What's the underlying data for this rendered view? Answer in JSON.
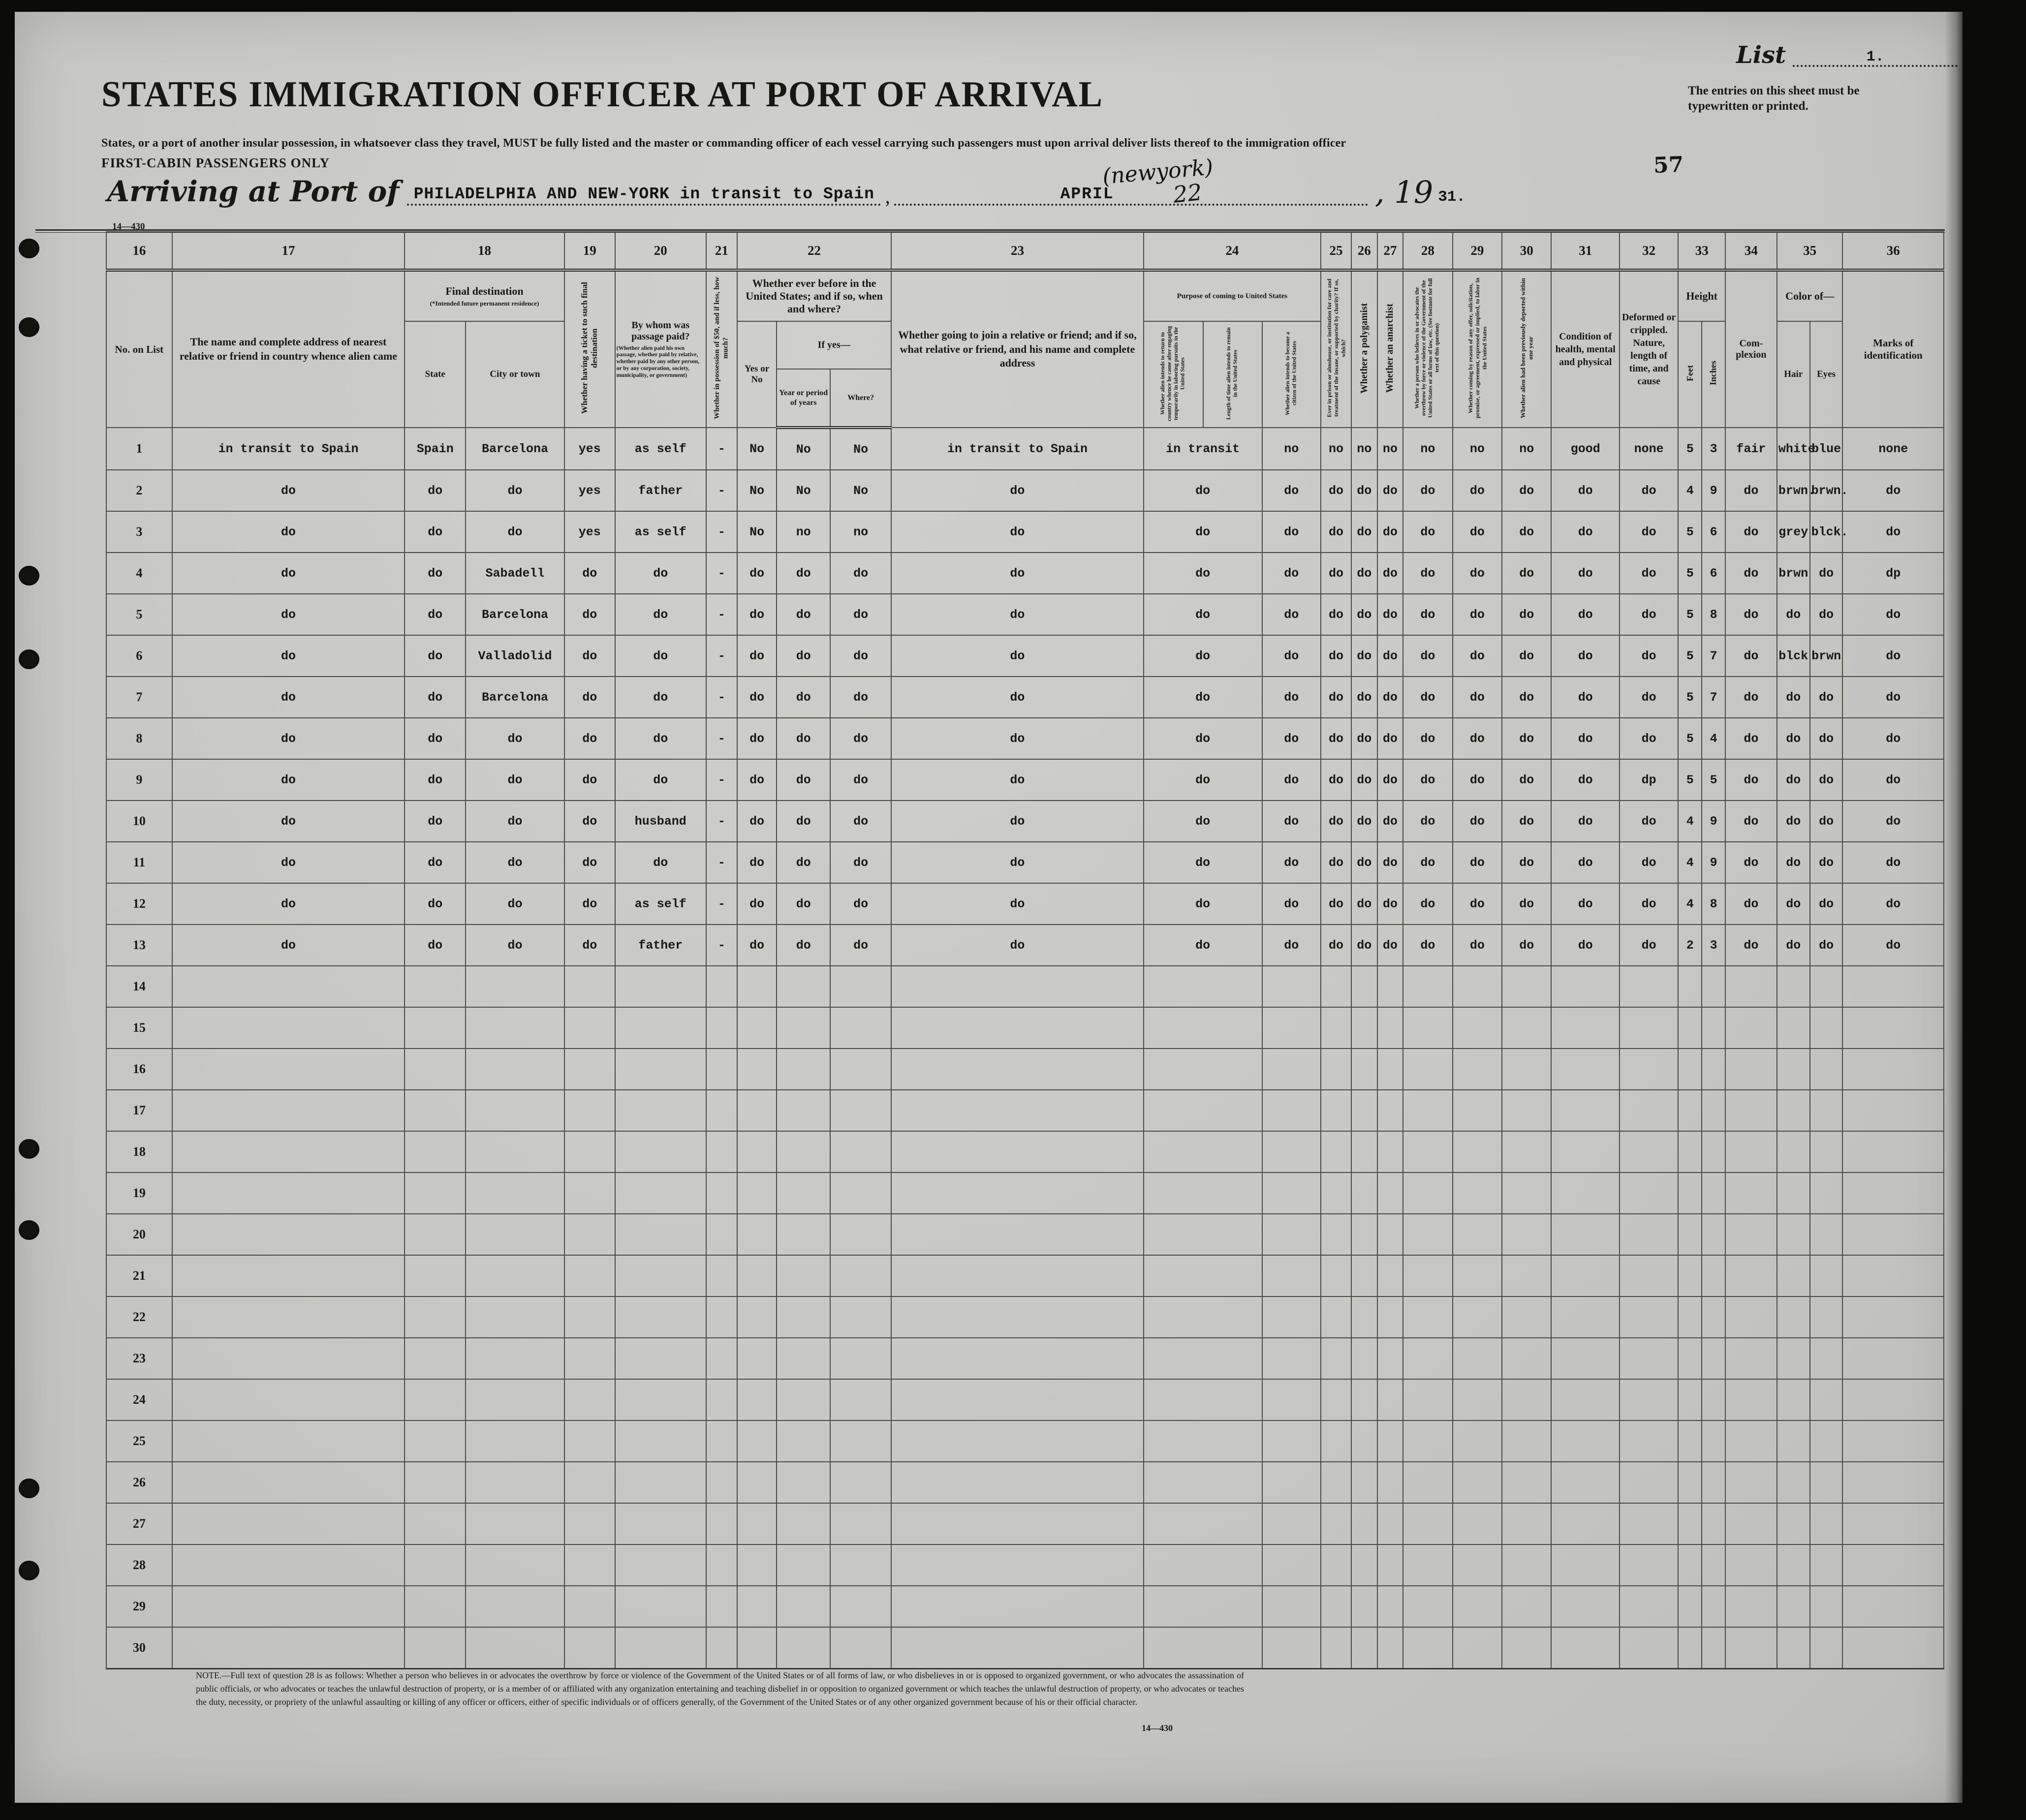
{
  "page": {
    "list_label": "List",
    "list_number": "1.",
    "entries_note": "The entries on this sheet must be typewritten or printed.",
    "sheet_number": "57",
    "title": "STATES IMMIGRATION OFFICER AT PORT OF ARRIVAL",
    "subtitle": "States, or a port of another insular possession, in whatsoever class they travel, MUST be fully listed and the master or commanding officer of each vessel carrying such passengers must upon arrival deliver lists thereof to the immigration officer",
    "subtitle2": "FIRST-CABIN PASSENGERS ONLY",
    "arrival_label": "Arriving at Port of",
    "port_value": "PHILADELPHIA AND NEW-YORK in transit to Spain",
    "comma": ",",
    "handwritten_note": "(newyork)",
    "date_month": "APRIL",
    "date_day": "22",
    "year_printed": ", 19",
    "year_typed": "31.",
    "form_number": "14—430",
    "footnote": "NOTE.—Full text of question 28 is as follows: Whether a person who believes in or advocates the overthrow by force or violence of the Government of the United States or of all forms of law, or who disbelieves in or is opposed to organized government, or who advocates the assassination of public officials, or who advocates or teaches the unlawful destruction of property, or is a member of or affiliated with any organization entertaining and teaching disbelief in or opposition to organized government or which teaches the unlawful destruction of property, or who advocates or teaches the duty, necessity, or propriety of the unlawful assaulting or killing of any officer or officers, either of specific individuals or of officers generally, of the Government of the United States or of any other organized government because of his or their official character.",
    "footnote_form_number": "14—430"
  },
  "table": {
    "col_numbers": [
      "16",
      "17",
      "18",
      "19",
      "20",
      "21",
      "22",
      "23",
      "24",
      "25",
      "26",
      "27",
      "28",
      "29",
      "30",
      "31",
      "32",
      "33",
      "34",
      "35",
      "36"
    ],
    "headers": {
      "h16": "No. on List",
      "h17": "The name and complete address of nearest relative or friend in country whence alien came",
      "h18": {
        "group": "Final destination",
        "note": "(*Intended future permanent residence)",
        "state": "State",
        "city": "City or town"
      },
      "h19": "Whether having a ticket to such final destination",
      "h20": {
        "main": "By whom was passage paid?",
        "note": "(Whether alien paid his own passage, whether paid by relative, whether paid by any other person, or by any corporation, society, municipality, or government)"
      },
      "h21": "Whether in possession of $50, and if less, how much?",
      "h22": {
        "group": "Whether ever before in the United States; and if so, when and where?",
        "yes_no": "Yes or No",
        "if_yes": "If yes—",
        "year": "Year or period of years",
        "where": "Where?"
      },
      "h23": "Whether going to join a relative or friend; and if so, what relative or friend, and his name and complete address",
      "h24": {
        "group": "Purpose of coming to United States",
        "return_home": "Whether alien intends to return to country whence he came after engaging temporarily in laboring pursuits in the United States",
        "length_stay": "Length of time alien intends to remain in the United States",
        "become_citizen": "Whether alien intends to become a citizen of the United States"
      },
      "h25": "Ever in prison or almshouse, or institution for care and treatment of the insane, or supported by charity? If so, which?",
      "h26": "Whether a polygamist",
      "h27": "Whether an anarchist",
      "h28": "Whether a person who believes in or advocates the overthrow by force or violence of the Government of the United States or all forms of law, etc. (See footnote for full text of this question)",
      "h29": "Whether coming by reason of any offer, solicitation, promise, or agreement, expressed or implied, to labor in the United States",
      "h30": "Whether alien had been previously deported within one year",
      "h31": "Condition of health, mental and physical",
      "h32": "Deformed or crippled. Nature, length of time, and cause",
      "h33": {
        "group": "Height",
        "feet": "Feet",
        "inches": "Inches"
      },
      "h34": "Com-plexion",
      "h35": {
        "group": "Color of—",
        "hair": "Hair",
        "eyes": "Eyes"
      },
      "h36": "Marks of identification"
    },
    "columns": [
      "no-on-list",
      "relative-address",
      "dest-state",
      "dest-city",
      "ticket-to-destination",
      "passage-paid-by",
      "possession-of-50",
      "before-us-yes-no",
      "before-us-year",
      "before-us-where",
      "joining-relative",
      "purpose-of-coming",
      "intends-citizen",
      "ever-prison",
      "polygamist",
      "anarchist",
      "overthrow-belief",
      "labor-offer",
      "previously-deported",
      "health-condition",
      "deformed-crippled",
      "height-feet",
      "height-inches",
      "complexion",
      "hair-color",
      "eye-color",
      "marks-identification"
    ],
    "rows": [
      [
        "1",
        "in transit to Spain",
        "Spain",
        "Barcelona",
        "yes",
        "as self",
        "-",
        "No",
        "No",
        "No",
        "in transit to Spain",
        "in transit",
        "no",
        "no",
        "no",
        "no",
        "no",
        "no",
        "no",
        "good",
        "none",
        "5",
        "3",
        "fair",
        "white",
        "blue",
        "none"
      ],
      [
        "2",
        "do",
        "do",
        "do",
        "yes",
        "father",
        "-",
        "No",
        "No",
        "No",
        "do",
        "do",
        "do",
        "do",
        "do",
        "do",
        "do",
        "do",
        "do",
        "do",
        "do",
        "4",
        "9",
        "do",
        "brwn.",
        "brwn.",
        "do"
      ],
      [
        "3",
        "do",
        "do",
        "do",
        "yes",
        "as self",
        "-",
        "No",
        "no",
        "no",
        "do",
        "do",
        "do",
        "do",
        "do",
        "do",
        "do",
        "do",
        "do",
        "do",
        "do",
        "5",
        "6",
        "do",
        "grey",
        "blck.",
        "do"
      ],
      [
        "4",
        "do",
        "do",
        "Sabadell",
        "do",
        "do",
        "-",
        "do",
        "do",
        "do",
        "do",
        "do",
        "do",
        "do",
        "do",
        "do",
        "do",
        "do",
        "do",
        "do",
        "do",
        "5",
        "6",
        "do",
        "brwn",
        "do",
        "dp"
      ],
      [
        "5",
        "do",
        "do",
        "Barcelona",
        "do",
        "do",
        "-",
        "do",
        "do",
        "do",
        "do",
        "do",
        "do",
        "do",
        "do",
        "do",
        "do",
        "do",
        "do",
        "do",
        "do",
        "5",
        "8",
        "do",
        "do",
        "do",
        "do"
      ],
      [
        "6",
        "do",
        "do",
        "Valladolid",
        "do",
        "do",
        "-",
        "do",
        "do",
        "do",
        "do",
        "do",
        "do",
        "do",
        "do",
        "do",
        "do",
        "do",
        "do",
        "do",
        "do",
        "5",
        "7",
        "do",
        "blck",
        "brwn",
        "do"
      ],
      [
        "7",
        "do",
        "do",
        "Barcelona",
        "do",
        "do",
        "-",
        "do",
        "do",
        "do",
        "do",
        "do",
        "do",
        "do",
        "do",
        "do",
        "do",
        "do",
        "do",
        "do",
        "do",
        "5",
        "7",
        "do",
        "do",
        "do",
        "do"
      ],
      [
        "8",
        "do",
        "do",
        "do",
        "do",
        "do",
        "-",
        "do",
        "do",
        "do",
        "do",
        "do",
        "do",
        "do",
        "do",
        "do",
        "do",
        "do",
        "do",
        "do",
        "do",
        "5",
        "4",
        "do",
        "do",
        "do",
        "do"
      ],
      [
        "9",
        "do",
        "do",
        "do",
        "do",
        "do",
        "-",
        "do",
        "do",
        "do",
        "do",
        "do",
        "do",
        "do",
        "do",
        "do",
        "do",
        "do",
        "do",
        "do",
        "dp",
        "5",
        "5",
        "do",
        "do",
        "do",
        "do"
      ],
      [
        "10",
        "do",
        "do",
        "do",
        "do",
        "husband",
        "-",
        "do",
        "do",
        "do",
        "do",
        "do",
        "do",
        "do",
        "do",
        "do",
        "do",
        "do",
        "do",
        "do",
        "do",
        "4",
        "9",
        "do",
        "do",
        "do",
        "do"
      ],
      [
        "11",
        "do",
        "do",
        "do",
        "do",
        "do",
        "-",
        "do",
        "do",
        "do",
        "do",
        "do",
        "do",
        "do",
        "do",
        "do",
        "do",
        "do",
        "do",
        "do",
        "do",
        "4",
        "9",
        "do",
        "do",
        "do",
        "do"
      ],
      [
        "12",
        "do",
        "do",
        "do",
        "do",
        "as self",
        "-",
        "do",
        "do",
        "do",
        "do",
        "do",
        "do",
        "do",
        "do",
        "do",
        "do",
        "do",
        "do",
        "do",
        "do",
        "4",
        "8",
        "do",
        "do",
        "do",
        "do"
      ],
      [
        "13",
        "do",
        "do",
        "do",
        "do",
        "father",
        "-",
        "do",
        "do",
        "do",
        "do",
        "do",
        "do",
        "do",
        "do",
        "do",
        "do",
        "do",
        "do",
        "do",
        "do",
        "2",
        "3",
        "do",
        "do",
        "do",
        "do"
      ],
      [
        "14",
        "",
        "",
        "",
        "",
        "",
        "",
        "",
        "",
        "",
        "",
        "",
        "",
        "",
        "",
        "",
        "",
        "",
        "",
        "",
        "",
        "",
        "",
        "",
        "",
        "",
        ""
      ],
      [
        "15",
        "",
        "",
        "",
        "",
        "",
        "",
        "",
        "",
        "",
        "",
        "",
        "",
        "",
        "",
        "",
        "",
        "",
        "",
        "",
        "",
        "",
        "",
        "",
        "",
        "",
        ""
      ],
      [
        "16",
        "",
        "",
        "",
        "",
        "",
        "",
        "",
        "",
        "",
        "",
        "",
        "",
        "",
        "",
        "",
        "",
        "",
        "",
        "",
        "",
        "",
        "",
        "",
        "",
        "",
        ""
      ],
      [
        "17",
        "",
        "",
        "",
        "",
        "",
        "",
        "",
        "",
        "",
        "",
        "",
        "",
        "",
        "",
        "",
        "",
        "",
        "",
        "",
        "",
        "",
        "",
        "",
        "",
        "",
        ""
      ],
      [
        "18",
        "",
        "",
        "",
        "",
        "",
        "",
        "",
        "",
        "",
        "",
        "",
        "",
        "",
        "",
        "",
        "",
        "",
        "",
        "",
        "",
        "",
        "",
        "",
        "",
        "",
        ""
      ],
      [
        "19",
        "",
        "",
        "",
        "",
        "",
        "",
        "",
        "",
        "",
        "",
        "",
        "",
        "",
        "",
        "",
        "",
        "",
        "",
        "",
        "",
        "",
        "",
        "",
        "",
        "",
        ""
      ],
      [
        "20",
        "",
        "",
        "",
        "",
        "",
        "",
        "",
        "",
        "",
        "",
        "",
        "",
        "",
        "",
        "",
        "",
        "",
        "",
        "",
        "",
        "",
        "",
        "",
        "",
        "",
        ""
      ],
      [
        "21",
        "",
        "",
        "",
        "",
        "",
        "",
        "",
        "",
        "",
        "",
        "",
        "",
        "",
        "",
        "",
        "",
        "",
        "",
        "",
        "",
        "",
        "",
        "",
        "",
        "",
        ""
      ],
      [
        "22",
        "",
        "",
        "",
        "",
        "",
        "",
        "",
        "",
        "",
        "",
        "",
        "",
        "",
        "",
        "",
        "",
        "",
        "",
        "",
        "",
        "",
        "",
        "",
        "",
        "",
        ""
      ],
      [
        "23",
        "",
        "",
        "",
        "",
        "",
        "",
        "",
        "",
        "",
        "",
        "",
        "",
        "",
        "",
        "",
        "",
        "",
        "",
        "",
        "",
        "",
        "",
        "",
        "",
        "",
        ""
      ],
      [
        "24",
        "",
        "",
        "",
        "",
        "",
        "",
        "",
        "",
        "",
        "",
        "",
        "",
        "",
        "",
        "",
        "",
        "",
        "",
        "",
        "",
        "",
        "",
        "",
        "",
        "",
        ""
      ],
      [
        "25",
        "",
        "",
        "",
        "",
        "",
        "",
        "",
        "",
        "",
        "",
        "",
        "",
        "",
        "",
        "",
        "",
        "",
        "",
        "",
        "",
        "",
        "",
        "",
        "",
        "",
        ""
      ],
      [
        "26",
        "",
        "",
        "",
        "",
        "",
        "",
        "",
        "",
        "",
        "",
        "",
        "",
        "",
        "",
        "",
        "",
        "",
        "",
        "",
        "",
        "",
        "",
        "",
        "",
        "",
        ""
      ],
      [
        "27",
        "",
        "",
        "",
        "",
        "",
        "",
        "",
        "",
        "",
        "",
        "",
        "",
        "",
        "",
        "",
        "",
        "",
        "",
        "",
        "",
        "",
        "",
        "",
        "",
        "",
        ""
      ],
      [
        "28",
        "",
        "",
        "",
        "",
        "",
        "",
        "",
        "",
        "",
        "",
        "",
        "",
        "",
        "",
        "",
        "",
        "",
        "",
        "",
        "",
        "",
        "",
        "",
        "",
        "",
        ""
      ],
      [
        "29",
        "",
        "",
        "",
        "",
        "",
        "",
        "",
        "",
        "",
        "",
        "",
        "",
        "",
        "",
        "",
        "",
        "",
        "",
        "",
        "",
        "",
        "",
        "",
        "",
        "",
        ""
      ],
      [
        "30",
        "",
        "",
        "",
        "",
        "",
        "",
        "",
        "",
        "",
        "",
        "",
        "",
        "",
        "",
        "",
        "",
        "",
        "",
        "",
        "",
        "",
        "",
        "",
        "",
        "",
        ""
      ]
    ]
  }
}
